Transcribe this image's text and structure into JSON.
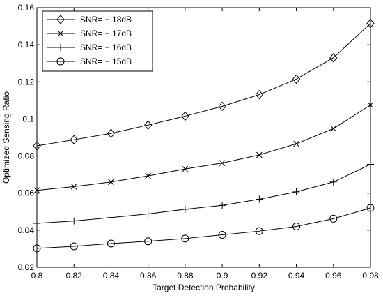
{
  "chart_data": {
    "type": "line",
    "xlabel": "Target Detection Probability",
    "ylabel": "Optimized Sensing Ratio",
    "xlim": [
      0.8,
      0.98
    ],
    "ylim": [
      0.02,
      0.16
    ],
    "x_ticks": [
      "0.8",
      "0.82",
      "0.84",
      "0.86",
      "0.88",
      "0.9",
      "0.92",
      "0.94",
      "0.96",
      "0.98"
    ],
    "y_ticks": [
      "0.02",
      "0.04",
      "0.06",
      "0.08",
      "0.1",
      "0.12",
      "0.14",
      "0.16"
    ],
    "grid": false,
    "legend_position": "top-left",
    "x": [
      0.8,
      0.82,
      0.84,
      0.86,
      0.88,
      0.9,
      0.92,
      0.94,
      0.96,
      0.98
    ],
    "series": [
      {
        "name": "SNR= − 18dB",
        "marker": "diamond",
        "values": [
          0.0855,
          0.0888,
          0.0922,
          0.0967,
          0.1015,
          0.1068,
          0.1131,
          0.1215,
          0.133,
          0.1515
        ]
      },
      {
        "name": "SNR= − 17dB",
        "marker": "x",
        "values": [
          0.0615,
          0.0635,
          0.066,
          0.0693,
          0.073,
          0.0762,
          0.0806,
          0.0866,
          0.0948,
          0.1075
        ]
      },
      {
        "name": "SNR= − 16dB",
        "marker": "plus",
        "values": [
          0.0437,
          0.045,
          0.0468,
          0.0488,
          0.0513,
          0.0534,
          0.0567,
          0.0607,
          0.066,
          0.0755
        ]
      },
      {
        "name": "SNR= − 15dB",
        "marker": "circle",
        "values": [
          0.0302,
          0.0313,
          0.0328,
          0.034,
          0.0355,
          0.0375,
          0.0395,
          0.042,
          0.0462,
          0.052
        ]
      }
    ],
    "line_color": "#000000"
  }
}
